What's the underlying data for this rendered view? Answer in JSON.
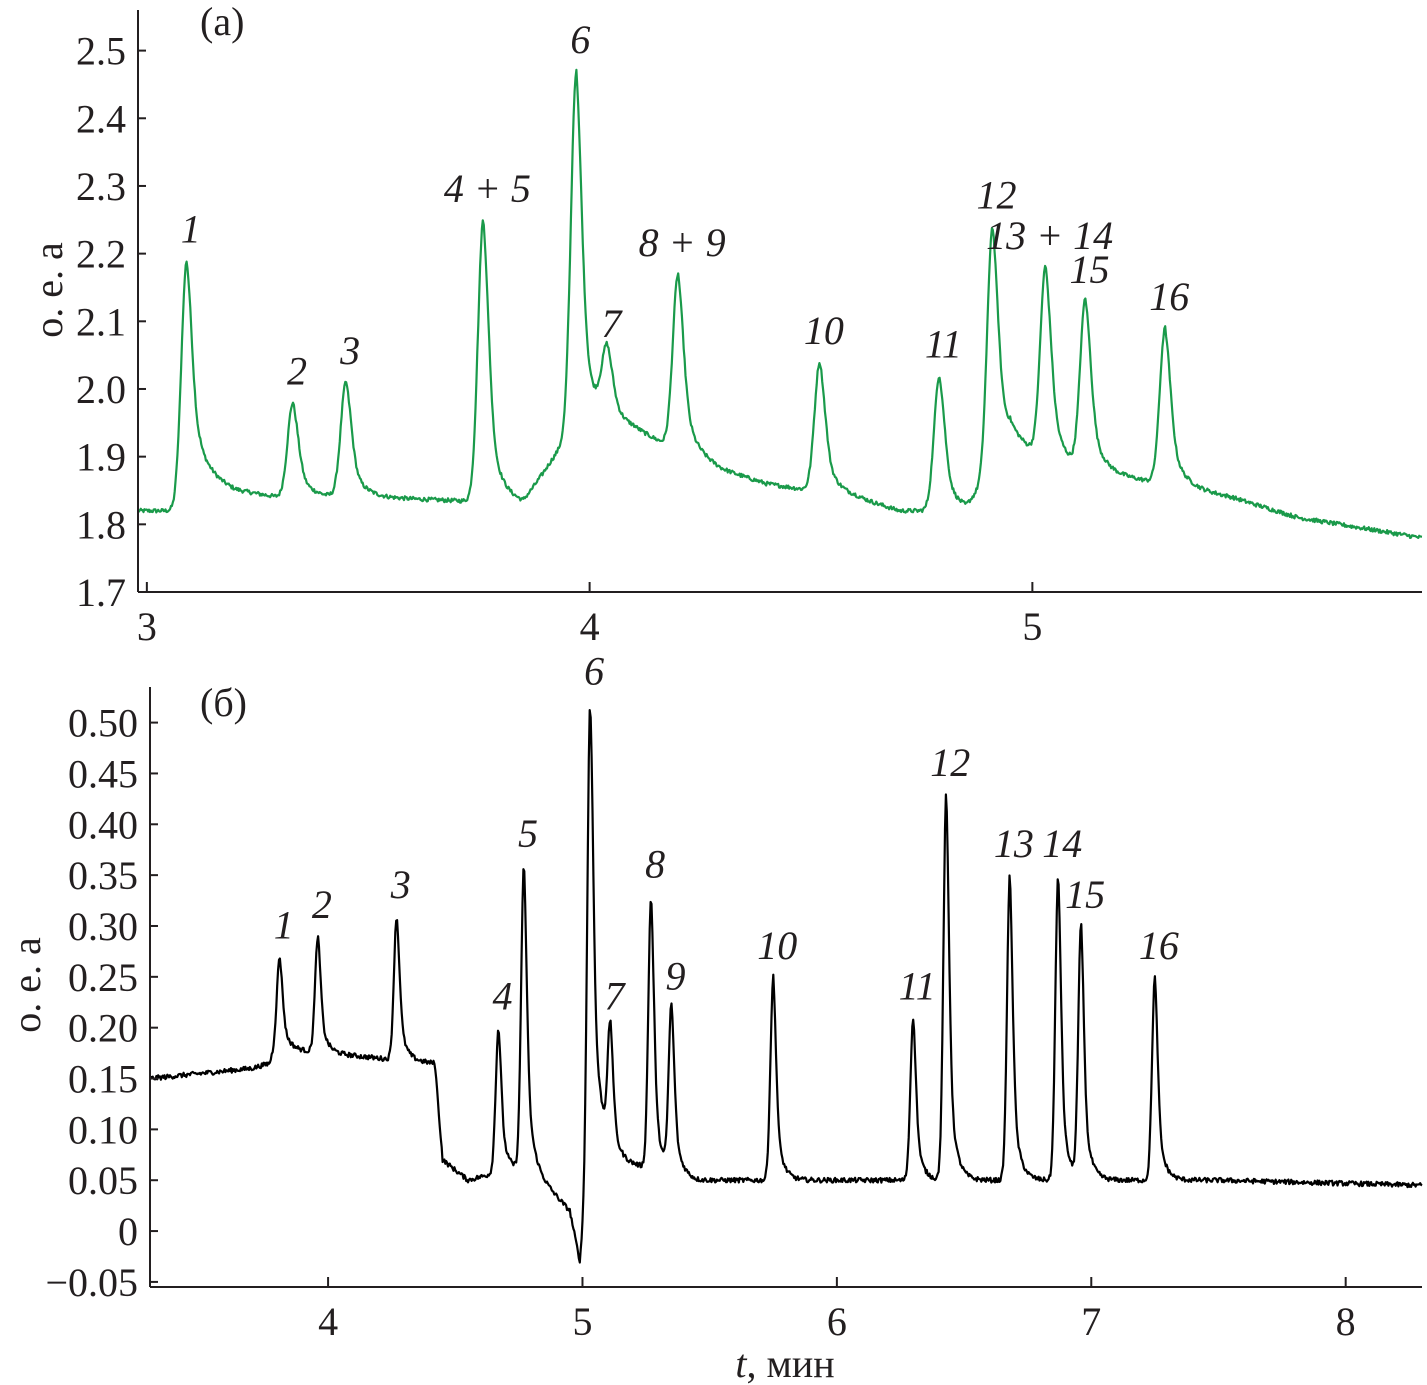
{
  "chart_data": [
    {
      "type": "line",
      "panel_label": "(a)",
      "ylabel": "о. е. а",
      "xlabel": "",
      "xlim": [
        2.98,
        5.88
      ],
      "ylim": [
        1.7,
        2.56
      ],
      "x_ticks": [
        3,
        4,
        5
      ],
      "x_tick_labels": [
        "3",
        "4",
        "5"
      ],
      "y_ticks": [
        1.7,
        1.8,
        1.9,
        2.0,
        2.1,
        2.2,
        2.3,
        2.4,
        2.5
      ],
      "y_tick_labels": [
        "1.7",
        "1.8",
        "1.9",
        "2.0",
        "2.1",
        "2.2",
        "2.3",
        "2.4",
        "2.5"
      ],
      "line_color": "#1a9a4a",
      "baseline": [
        {
          "x": 2.98,
          "y": 1.82
        },
        {
          "x": 3.06,
          "y": 1.82
        },
        {
          "x": 3.12,
          "y": 1.87
        },
        {
          "x": 3.2,
          "y": 1.85
        },
        {
          "x": 3.3,
          "y": 1.84
        },
        {
          "x": 3.5,
          "y": 1.84
        },
        {
          "x": 3.7,
          "y": 1.835
        },
        {
          "x": 3.85,
          "y": 1.83
        },
        {
          "x": 3.95,
          "y": 1.93
        },
        {
          "x": 4.02,
          "y": 1.95
        },
        {
          "x": 4.1,
          "y": 1.94
        },
        {
          "x": 4.2,
          "y": 1.91
        },
        {
          "x": 4.3,
          "y": 1.88
        },
        {
          "x": 4.4,
          "y": 1.86
        },
        {
          "x": 4.5,
          "y": 1.85
        },
        {
          "x": 4.6,
          "y": 1.84
        },
        {
          "x": 4.7,
          "y": 1.82
        },
        {
          "x": 4.85,
          "y": 1.82
        },
        {
          "x": 4.95,
          "y": 1.92
        },
        {
          "x": 5.1,
          "y": 1.88
        },
        {
          "x": 5.3,
          "y": 1.86
        },
        {
          "x": 5.45,
          "y": 1.84
        },
        {
          "x": 5.6,
          "y": 1.81
        },
        {
          "x": 5.88,
          "y": 1.78
        }
      ],
      "peaks": [
        {
          "label": "1",
          "x": 3.09,
          "y": 2.19
        },
        {
          "label": "2",
          "x": 3.33,
          "y": 1.98
        },
        {
          "label": "3",
          "x": 3.45,
          "y": 2.01
        },
        {
          "label": "4 + 5",
          "x": 3.76,
          "y": 2.25
        },
        {
          "label": "6",
          "x": 3.97,
          "y": 2.47
        },
        {
          "label": "7",
          "x": 4.04,
          "y": 2.05
        },
        {
          "label": "8 + 9",
          "x": 4.2,
          "y": 2.17
        },
        {
          "label": "10",
          "x": 4.52,
          "y": 2.04
        },
        {
          "label": "11",
          "x": 4.79,
          "y": 2.02
        },
        {
          "label": "12",
          "x": 4.91,
          "y": 2.24
        },
        {
          "label": "13 + 14",
          "x": 5.03,
          "y": 2.18
        },
        {
          "label": "15",
          "x": 5.12,
          "y": 2.13
        },
        {
          "label": "16",
          "x": 5.3,
          "y": 2.09
        }
      ]
    },
    {
      "type": "line",
      "panel_label": "(б)",
      "ylabel": "о. е. а",
      "xlabel": "t, мин",
      "xlabel_var": "t",
      "xlabel_unit": ", мин",
      "xlim": [
        3.3,
        8.3
      ],
      "ylim": [
        -0.055,
        0.535
      ],
      "x_ticks": [
        4,
        5,
        6,
        7,
        8
      ],
      "x_tick_labels": [
        "4",
        "5",
        "6",
        "7",
        "8"
      ],
      "y_ticks": [
        -0.05,
        0,
        0.05,
        0.1,
        0.15,
        0.2,
        0.25,
        0.3,
        0.35,
        0.4,
        0.45,
        0.5
      ],
      "y_tick_labels": [
        "−0.05",
        "0",
        "0.05",
        "0.10",
        "0.15",
        "0.20",
        "0.25",
        "0.30",
        "0.35",
        "0.40",
        "0.45",
        "0.50"
      ],
      "line_color": "#000000",
      "baseline": [
        {
          "x": 3.3,
          "y": 0.15
        },
        {
          "x": 3.7,
          "y": 0.16
        },
        {
          "x": 3.77,
          "y": 0.165
        },
        {
          "x": 3.79,
          "y": 0.18
        },
        {
          "x": 4.0,
          "y": 0.175
        },
        {
          "x": 4.2,
          "y": 0.17
        },
        {
          "x": 4.42,
          "y": 0.165
        },
        {
          "x": 4.45,
          "y": 0.07
        },
        {
          "x": 4.55,
          "y": 0.05
        },
        {
          "x": 4.7,
          "y": 0.06
        },
        {
          "x": 4.8,
          "y": 0.06
        },
        {
          "x": 4.95,
          "y": 0.02
        },
        {
          "x": 4.99,
          "y": -0.03
        },
        {
          "x": 5.04,
          "y": 0.12
        },
        {
          "x": 5.12,
          "y": 0.07
        },
        {
          "x": 5.3,
          "y": 0.06
        },
        {
          "x": 5.45,
          "y": 0.05
        },
        {
          "x": 6.0,
          "y": 0.05
        },
        {
          "x": 6.5,
          "y": 0.05
        },
        {
          "x": 7.5,
          "y": 0.05
        },
        {
          "x": 8.3,
          "y": 0.045
        }
      ],
      "peaks": [
        {
          "label": "1",
          "x": 3.81,
          "y": 0.27
        },
        {
          "label": "2",
          "x": 3.96,
          "y": 0.29
        },
        {
          "label": "3",
          "x": 4.27,
          "y": 0.31
        },
        {
          "label": "4",
          "x": 4.67,
          "y": 0.2
        },
        {
          "label": "5",
          "x": 4.77,
          "y": 0.36
        },
        {
          "label": "6",
          "x": 5.03,
          "y": 0.52
        },
        {
          "label": "7",
          "x": 5.11,
          "y": 0.2
        },
        {
          "label": "8",
          "x": 5.27,
          "y": 0.33
        },
        {
          "label": "9",
          "x": 5.35,
          "y": 0.22
        },
        {
          "label": "10",
          "x": 5.75,
          "y": 0.25
        },
        {
          "label": "11",
          "x": 6.3,
          "y": 0.21
        },
        {
          "label": "12",
          "x": 6.43,
          "y": 0.43
        },
        {
          "label": "13",
          "x": 6.68,
          "y": 0.35
        },
        {
          "label": "14",
          "x": 6.87,
          "y": 0.35
        },
        {
          "label": "15",
          "x": 6.96,
          "y": 0.3
        },
        {
          "label": "16",
          "x": 7.25,
          "y": 0.25
        }
      ]
    }
  ]
}
